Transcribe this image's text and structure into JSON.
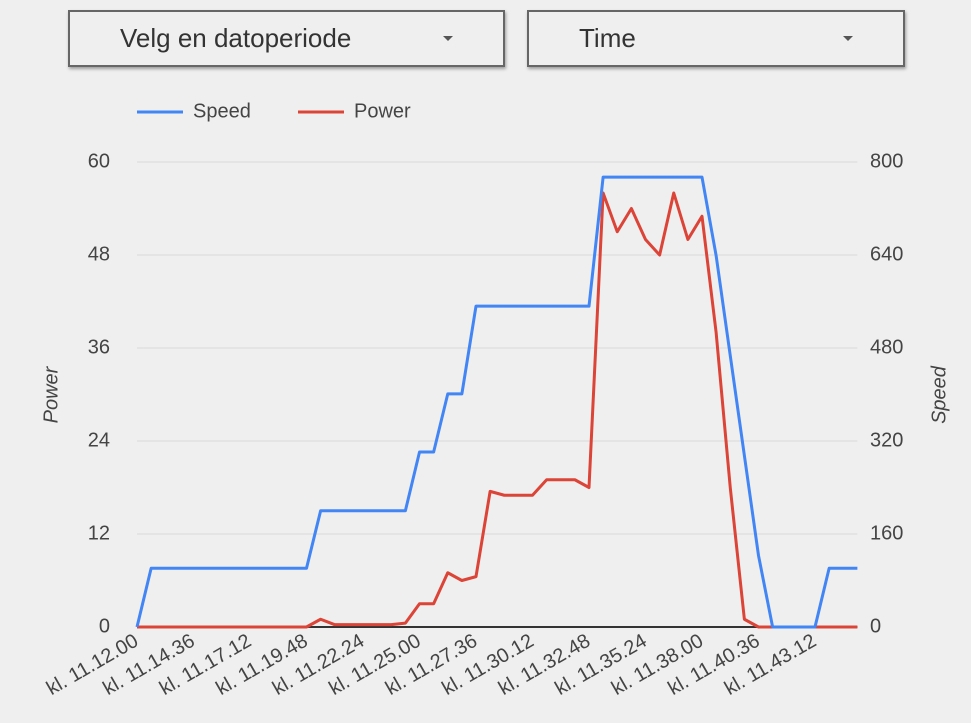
{
  "controls": [
    {
      "label": "Velg en datoperiode"
    },
    {
      "label": "Time"
    }
  ],
  "chart_data": {
    "type": "line",
    "ylabel": "Power",
    "y2label": "Speed",
    "legend": "top",
    "x": [
      "kl. 11.12.00",
      null,
      null,
      null,
      "kl. 11.14.36",
      null,
      null,
      null,
      "kl. 11.17.12",
      null,
      null,
      null,
      "kl. 11.19.48",
      null,
      null,
      null,
      "kl. 11.22.24",
      null,
      null,
      null,
      "kl. 11.25.00",
      null,
      null,
      null,
      "kl. 11.27.36",
      null,
      null,
      null,
      "kl. 11.30.12",
      null,
      null,
      null,
      "kl. 11.32.48",
      null,
      null,
      null,
      "kl. 11.35.24",
      null,
      null,
      null,
      "kl. 11.38.00",
      null,
      null,
      null,
      "kl. 11.40.36",
      null,
      null,
      null,
      "kl. 11.43.12",
      null,
      null,
      null
    ],
    "ylim": [
      0,
      60
    ],
    "yticks": [
      0,
      12,
      24,
      36,
      48,
      60
    ],
    "y2lim": [
      0,
      800
    ],
    "y2ticks": [
      0,
      160,
      320,
      480,
      640,
      800
    ],
    "grid": true,
    "series": [
      {
        "name": "Speed",
        "color": "#4285f4",
        "axis": "y2",
        "values": [
          0,
          101,
          101,
          101,
          101,
          101,
          101,
          101,
          101,
          101,
          101,
          101,
          101,
          200,
          200,
          200,
          200,
          200,
          200,
          200,
          301,
          301,
          401,
          401,
          552,
          552,
          552,
          552,
          552,
          552,
          552,
          552,
          552,
          774,
          774,
          774,
          774,
          774,
          774,
          774,
          774,
          639,
          467,
          295,
          123,
          0,
          0,
          0,
          0,
          101,
          101,
          101
        ]
      },
      {
        "name": "Power",
        "color": "#db4437",
        "axis": "y",
        "values": [
          0,
          0,
          0,
          0,
          0,
          0,
          0,
          0,
          0,
          0,
          0,
          0,
          0,
          1,
          0.3,
          0.3,
          0.3,
          0.3,
          0.3,
          0.5,
          3,
          3,
          7,
          6,
          6.5,
          17.5,
          17,
          17,
          17,
          19,
          19,
          19,
          18,
          56,
          51,
          54,
          50,
          48,
          56,
          50,
          53,
          38,
          18,
          1,
          0,
          0,
          0,
          0,
          0,
          0,
          0,
          0
        ]
      }
    ]
  }
}
